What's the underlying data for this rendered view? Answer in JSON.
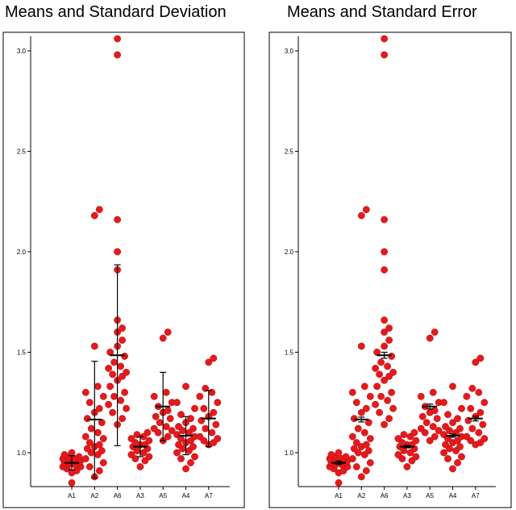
{
  "chart_data": [
    {
      "type": "scatter",
      "title": "Means and Standard Deviation",
      "error_bar": "standard deviation",
      "xlabel": "",
      "ylabel": "",
      "ylim": [
        0.83,
        3.07
      ],
      "yticks": [
        "1.0",
        "1.5",
        "2.0",
        "2.5",
        "3.0"
      ],
      "categories": [
        "A1",
        "A2",
        "A6",
        "A3",
        "A5",
        "A4",
        "A7"
      ],
      "point_color": "#e41a1c",
      "groups": [
        {
          "name": "A1",
          "mean": 0.95,
          "err": 0.035,
          "values": [
            0.85,
            0.9,
            0.91,
            0.92,
            0.93,
            0.93,
            0.94,
            0.94,
            0.95,
            0.95,
            0.95,
            0.96,
            0.96,
            0.96,
            0.97,
            0.97,
            0.98,
            0.98,
            0.99,
            1.0
          ]
        },
        {
          "name": "A2",
          "mean": 1.165,
          "err": 0.29,
          "values": [
            0.88,
            0.91,
            0.93,
            0.95,
            0.97,
            0.99,
            1.0,
            1.01,
            1.02,
            1.03,
            1.04,
            1.05,
            1.07,
            1.08,
            1.1,
            1.12,
            1.15,
            1.17,
            1.2,
            1.22,
            1.25,
            1.28,
            1.3,
            1.33,
            1.53,
            2.18,
            2.21
          ]
        },
        {
          "name": "A6",
          "mean": 1.485,
          "err": 0.45,
          "values": [
            1.14,
            1.17,
            1.2,
            1.22,
            1.24,
            1.26,
            1.28,
            1.3,
            1.33,
            1.36,
            1.38,
            1.39,
            1.4,
            1.42,
            1.43,
            1.45,
            1.48,
            1.5,
            1.53,
            1.56,
            1.6,
            1.62,
            1.66,
            1.91,
            2.0,
            2.16,
            2.98,
            3.06
          ]
        },
        {
          "name": "A3",
          "mean": 1.03,
          "err": 0.05,
          "values": [
            0.93,
            0.96,
            0.97,
            0.98,
            0.99,
            1.0,
            1.01,
            1.02,
            1.03,
            1.04,
            1.04,
            1.05,
            1.06,
            1.07,
            1.08,
            1.09,
            1.1
          ]
        },
        {
          "name": "A5",
          "mean": 1.23,
          "err": 0.17,
          "values": [
            1.06,
            1.08,
            1.1,
            1.11,
            1.12,
            1.13,
            1.15,
            1.17,
            1.18,
            1.2,
            1.21,
            1.23,
            1.25,
            1.28,
            1.3,
            1.57,
            1.6
          ]
        },
        {
          "name": "A4",
          "mean": 1.085,
          "err": 0.095,
          "values": [
            0.92,
            0.95,
            0.97,
            0.98,
            1.0,
            1.01,
            1.02,
            1.03,
            1.04,
            1.05,
            1.06,
            1.07,
            1.08,
            1.09,
            1.1,
            1.11,
            1.12,
            1.13,
            1.15,
            1.17,
            1.19,
            1.22,
            1.25,
            1.33
          ]
        },
        {
          "name": "A7",
          "mean": 1.17,
          "err": 0.14,
          "values": [
            1.04,
            1.05,
            1.06,
            1.07,
            1.08,
            1.1,
            1.12,
            1.14,
            1.16,
            1.18,
            1.2,
            1.22,
            1.25,
            1.28,
            1.3,
            1.32,
            1.45,
            1.47
          ]
        }
      ]
    },
    {
      "type": "scatter",
      "title": "Means and Standard Error",
      "error_bar": "standard error",
      "xlabel": "",
      "ylabel": "",
      "ylim": [
        0.83,
        3.07
      ],
      "yticks": [
        "1.0",
        "1.5",
        "2.0",
        "2.5",
        "3.0"
      ],
      "categories": [
        "A1",
        "A2",
        "A6",
        "A3",
        "A5",
        "A4",
        "A7"
      ],
      "point_color": "#e41a1c",
      "groups": [
        {
          "name": "A1",
          "mean": 0.95,
          "err": 0.008,
          "values": [
            0.85,
            0.9,
            0.91,
            0.92,
            0.93,
            0.93,
            0.94,
            0.94,
            0.95,
            0.95,
            0.95,
            0.96,
            0.96,
            0.96,
            0.97,
            0.97,
            0.98,
            0.98,
            0.99,
            1.0
          ]
        },
        {
          "name": "A2",
          "mean": 1.165,
          "err": 0.012,
          "values": [
            0.88,
            0.91,
            0.93,
            0.95,
            0.97,
            0.99,
            1.0,
            1.01,
            1.02,
            1.03,
            1.04,
            1.05,
            1.07,
            1.08,
            1.1,
            1.12,
            1.15,
            1.17,
            1.2,
            1.22,
            1.25,
            1.28,
            1.3,
            1.33,
            1.53,
            2.18,
            2.21
          ]
        },
        {
          "name": "A6",
          "mean": 1.485,
          "err": 0.015,
          "values": [
            1.14,
            1.17,
            1.2,
            1.22,
            1.24,
            1.26,
            1.28,
            1.3,
            1.33,
            1.36,
            1.38,
            1.39,
            1.4,
            1.42,
            1.43,
            1.45,
            1.48,
            1.5,
            1.53,
            1.56,
            1.6,
            1.62,
            1.66,
            1.91,
            2.0,
            2.16,
            2.98,
            3.06
          ]
        },
        {
          "name": "A3",
          "mean": 1.03,
          "err": 0.006,
          "values": [
            0.93,
            0.96,
            0.97,
            0.98,
            0.99,
            1.0,
            1.01,
            1.02,
            1.03,
            1.04,
            1.04,
            1.05,
            1.06,
            1.07,
            1.08,
            1.09,
            1.1
          ]
        },
        {
          "name": "A5",
          "mean": 1.23,
          "err": 0.012,
          "values": [
            1.06,
            1.08,
            1.1,
            1.11,
            1.12,
            1.13,
            1.15,
            1.17,
            1.18,
            1.2,
            1.21,
            1.23,
            1.25,
            1.28,
            1.3,
            1.57,
            1.6
          ]
        },
        {
          "name": "A4",
          "mean": 1.085,
          "err": 0.008,
          "values": [
            0.92,
            0.95,
            0.97,
            0.98,
            1.0,
            1.01,
            1.02,
            1.03,
            1.04,
            1.05,
            1.06,
            1.07,
            1.08,
            1.09,
            1.1,
            1.11,
            1.12,
            1.13,
            1.15,
            1.17,
            1.19,
            1.22,
            1.25,
            1.33
          ]
        },
        {
          "name": "A7",
          "mean": 1.17,
          "err": 0.012,
          "values": [
            1.04,
            1.05,
            1.06,
            1.07,
            1.08,
            1.1,
            1.12,
            1.14,
            1.16,
            1.18,
            1.2,
            1.22,
            1.25,
            1.28,
            1.3,
            1.32,
            1.45,
            1.47
          ]
        }
      ]
    }
  ]
}
